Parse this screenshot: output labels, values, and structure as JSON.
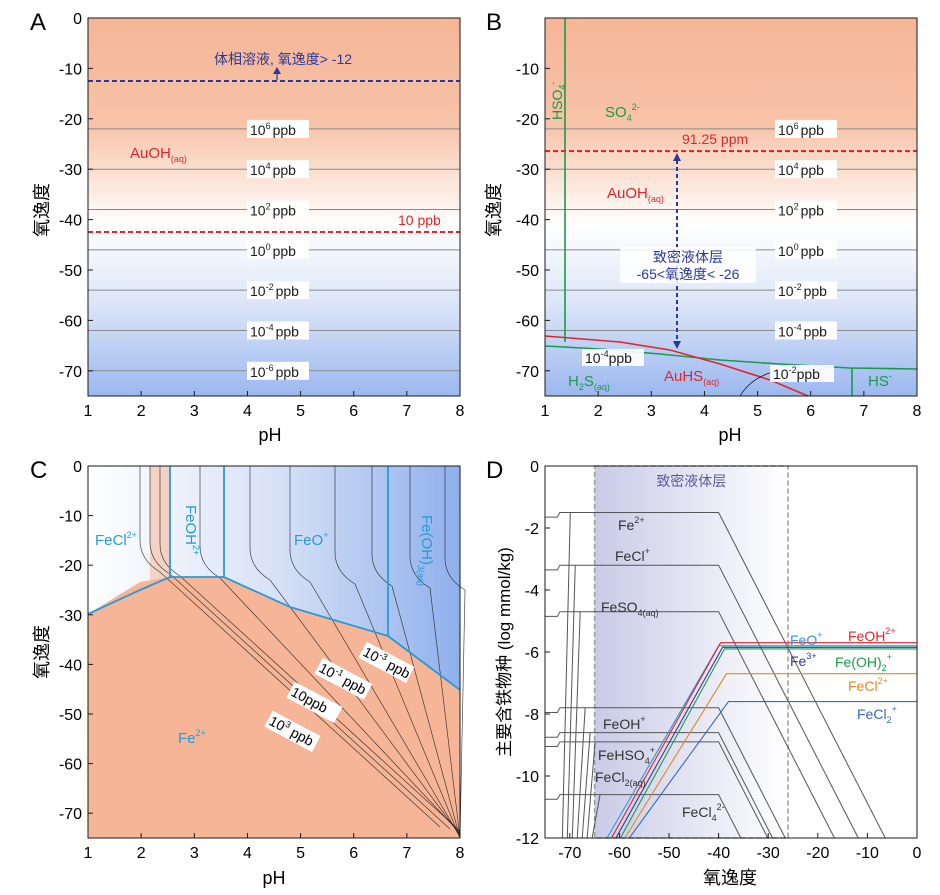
{
  "colors": {
    "peach": "#f6b597",
    "white": "#ffffff",
    "blue": "#9bb8ef",
    "red": "#e0262e",
    "dashblue": "#2b3a9a",
    "green": "#1a9a4a",
    "cyan": "#2a9ad6",
    "gray": "#888888",
    "black": "#1a1a1a"
  },
  "chart_data": [
    {
      "type": "line",
      "panel": "A",
      "xlabel": "pH",
      "ylabel": "氧逸度",
      "xlim": [
        1,
        8
      ],
      "ylim": [
        -75,
        0
      ],
      "xticks": [
        "1",
        "2",
        "3",
        "4",
        "5",
        "6",
        "7",
        "8"
      ],
      "yticks": [
        "0",
        "-10",
        "-20",
        "-30",
        "-40",
        "-50",
        "-60",
        "-70"
      ],
      "contours": [
        {
          "y": -22,
          "label": "10",
          "sup": "6",
          "unit": "ppb"
        },
        {
          "y": -30,
          "label": "10",
          "sup": "4",
          "unit": "ppb"
        },
        {
          "y": -38,
          "label": "10",
          "sup": "2",
          "unit": "ppb"
        },
        {
          "y": -46,
          "label": "10",
          "sup": "0",
          "unit": "ppb"
        },
        {
          "y": -54,
          "label": "10",
          "sup": "-2",
          "unit": "ppb"
        },
        {
          "y": -62,
          "label": "10",
          "sup": "-4",
          "unit": "ppb"
        },
        {
          "y": -70,
          "label": "10",
          "sup": "-6",
          "unit": "ppb"
        }
      ],
      "bulk_line": {
        "y": -12,
        "text": "体相溶液, 氧逸度> -12"
      },
      "ppb_line": {
        "y": -42,
        "text": "10 ppb"
      },
      "species": {
        "text": "AuOH",
        "sub": "(aq)",
        "x": 1.8,
        "y": -27
      }
    },
    {
      "type": "line",
      "panel": "B",
      "xlabel": "pH",
      "ylabel": "氧逸度",
      "xlim": [
        1,
        8
      ],
      "ylim": [
        -75,
        0
      ],
      "xticks": [
        "1",
        "2",
        "3",
        "4",
        "5",
        "6",
        "7",
        "8"
      ],
      "yticks": [
        "-10",
        "-20",
        "-30",
        "-40",
        "-50",
        "-60",
        "-70"
      ],
      "contours": [
        {
          "y": -22,
          "label": "10",
          "sup": "6",
          "unit": "ppb"
        },
        {
          "y": -30,
          "label": "10",
          "sup": "4",
          "unit": "ppb"
        },
        {
          "y": -38,
          "label": "10",
          "sup": "2",
          "unit": "ppb"
        },
        {
          "y": -46,
          "label": "10",
          "sup": "0",
          "unit": "ppb"
        },
        {
          "y": -54,
          "label": "10",
          "sup": "-2",
          "unit": "ppb"
        },
        {
          "y": -62,
          "label": "10",
          "sup": "-4",
          "unit": "ppb"
        }
      ],
      "ppm_line": {
        "y": -26,
        "text": "91.25 ppm"
      },
      "zone_text": [
        "致密液体层",
        "-65<氧逸度< -26"
      ],
      "labels": {
        "hso4": "HSO",
        "hso4_sub": "4",
        "hso4_sup": "-",
        "so4": "SO",
        "so4_sub": "4",
        "so4_sup": "2-",
        "auoh": "AuOH",
        "auoh_sub": "(aq)",
        "h2s": "H",
        "h2s_sub": "2",
        "h2s_mid": "S",
        "h2s_sub2": "(aq)",
        "auhs": "AuHS",
        "auhs_sub": "(aq)",
        "hs": "HS",
        "hs_sup": "-",
        "c_low": "10",
        "c_low_sup": "-4",
        "c_low_unit": "ppb",
        "c_low2": "10",
        "c_low2_sup": "-2",
        "c_low2_unit": "ppb"
      }
    },
    {
      "type": "line",
      "panel": "C",
      "xlabel": "pH",
      "ylabel": "氧逸度",
      "xlim": [
        1,
        8
      ],
      "ylim": [
        -75,
        0
      ],
      "xticks": [
        "1",
        "2",
        "3",
        "4",
        "5",
        "6",
        "7",
        "8"
      ],
      "yticks": [
        "0",
        "-10",
        "-20",
        "-30",
        "-40",
        "-50",
        "-60",
        "-70"
      ],
      "labels": {
        "fecl": "FeCl",
        "fecl_sup": "2+",
        "feoh": "FeOH",
        "feoh_sup": "2+",
        "feo": "FeO",
        "feo_sup": "+",
        "feoh3": "Fe(OH)",
        "feoh3_sub": "3(aq)",
        "fe2": "Fe",
        "fe2_sup": "2+",
        "c1": "10",
        "c1_sup": "-3",
        "c1_unit": " ppb",
        "c2": "10",
        "c2_sup": "-1",
        "c2_unit": " ppb",
        "c3": "10ppb",
        "c4": "10",
        "c4_sup": "3",
        "c4_unit": " ppb"
      }
    },
    {
      "type": "line",
      "panel": "D",
      "xlabel": "氧逸度",
      "ylabel": "主要含铁物种 (log mmol/kg)",
      "xlim": [
        -75,
        0
      ],
      "ylim": [
        -12,
        0
      ],
      "xticks": [
        "-70",
        "-60",
        "-50",
        "-40",
        "-30",
        "-20",
        "-10",
        "0"
      ],
      "yticks": [
        "0",
        "-2",
        "-4",
        "-6",
        "-8",
        "-10",
        "-12"
      ],
      "zone": {
        "x": [
          -65,
          -26
        ],
        "text": "致密液体层"
      },
      "series": [
        {
          "name": "Fe",
          "sup": "2+",
          "plateau": -1.5,
          "color": "#555555"
        },
        {
          "name": "FeCl",
          "sup": "+",
          "plateau": -3.2,
          "color": "#555555"
        },
        {
          "name": "FeSO",
          "sub": "4(aq)",
          "plateau": -4.7,
          "color": "#555555"
        },
        {
          "name": "FeOH",
          "sup": "+",
          "plateau": -7.8,
          "color": "#555555"
        },
        {
          "name": "FeHSO",
          "sub": "4",
          "sup": "+",
          "plateau": -8.6,
          "color": "#555555"
        },
        {
          "name": "FeCl",
          "sub": "2(aq)",
          "plateau": -8.9,
          "color": "#555555"
        },
        {
          "name": "FeCl",
          "sub": "4",
          "sup": "2-",
          "plateau": -10.6,
          "color": "#555555"
        },
        {
          "name": "FeO",
          "sup": "+",
          "plateau": -5.8,
          "color": "#2a9ad6"
        },
        {
          "name": "FeOH",
          "sup": "2+",
          "plateau": -5.7,
          "color": "#e0262e"
        },
        {
          "name": "Fe",
          "sup": "3+",
          "plateau": -5.85,
          "color": "#3a3a8a"
        },
        {
          "name": "Fe(OH)",
          "sub": "2",
          "sup": "+",
          "plateau": -5.9,
          "color": "#1a9a4a"
        },
        {
          "name": "FeCl",
          "sup": "2+",
          "plateau": -6.7,
          "color": "#e08a20"
        },
        {
          "name": "FeCl",
          "sub": "2",
          "sup": "+",
          "plateau": -7.6,
          "color": "#3a6ab0"
        }
      ]
    }
  ],
  "panel_letters": [
    "A",
    "B",
    "C",
    "D"
  ]
}
